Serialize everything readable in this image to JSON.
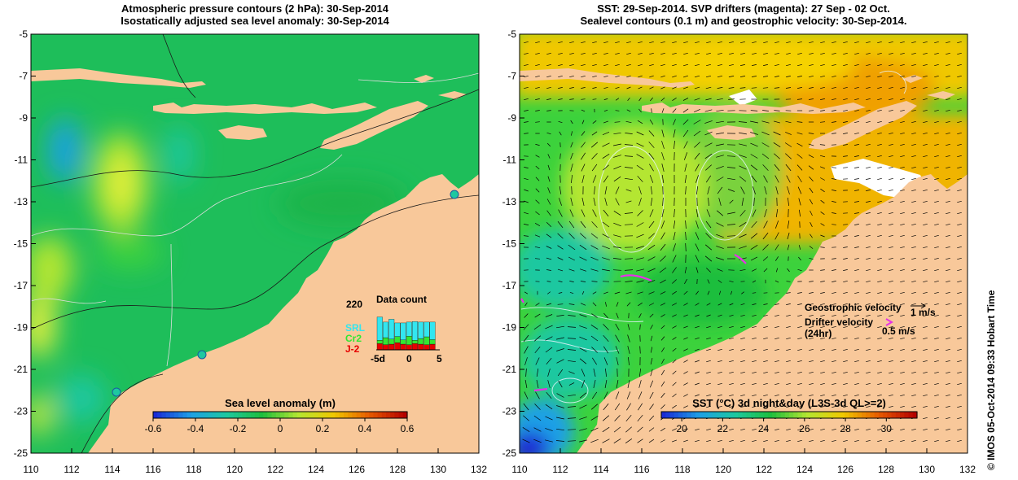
{
  "left_panel": {
    "title_line1": "Atmospheric pressure contours (2 hPa): 30-Sep-2014",
    "title_line2": "Isostatically adjusted sea level anomaly: 30-Sep-2014",
    "colorbar_label": "Sea level anomaly (m)",
    "colorbar_ticks": [
      "-0.6",
      "-0.4",
      "-0.2",
      "0",
      "0.2",
      "0.4",
      "0.6"
    ],
    "colorbar_range": [
      -0.6,
      0.6
    ],
    "colors": [
      "#1a2bd6",
      "#1ea0e6",
      "#1ec8a0",
      "#1ebe3c",
      "#b4e632",
      "#f0c800",
      "#e65a00",
      "#b40000"
    ],
    "inset": {
      "title": "Data count",
      "ymax_label": "220",
      "xticks": [
        "-5d",
        "0",
        "5"
      ],
      "legend": [
        {
          "name": "SRL",
          "color": "#32e6f0"
        },
        {
          "name": "Cr2",
          "color": "#32e632"
        },
        {
          "name": "J-2",
          "color": "#e60000"
        }
      ]
    }
  },
  "right_panel": {
    "title_line1": "SST: 29-Sep-2014. SVP drifters (magenta): 27 Sep - 02 Oct.",
    "title_line2": "Sealevel contours (0.1 m) and geostrophic velocity: 30-Sep-2014.",
    "colorbar_label": "SST (°C) 3d night&day (L3S-3d QL>=2)",
    "colorbar_ticks": [
      "20",
      "22",
      "24",
      "26",
      "28",
      "30"
    ],
    "colorbar_range": [
      19,
      31.5
    ],
    "colors": [
      "#1a2bd6",
      "#1ea0e6",
      "#1ec8a0",
      "#1ebe3c",
      "#b4e632",
      "#f0c800",
      "#e65a00",
      "#b40000"
    ],
    "geostrophic_label": "Geostrophic velocity",
    "geostrophic_scale": "1 m/s",
    "drifter_label_line1": "Drifter velocity",
    "drifter_label_line2": "(24hr)",
    "drifter_scale": "0.5 m/s"
  },
  "axes": {
    "x_ticks": [
      "110",
      "112",
      "114",
      "116",
      "118",
      "120",
      "122",
      "124",
      "126",
      "128",
      "130",
      "132"
    ],
    "y_ticks": [
      "-5",
      "-7",
      "-9",
      "-11",
      "-13",
      "-15",
      "-17",
      "-19",
      "-21",
      "-23",
      "-25"
    ],
    "lon_range": [
      110,
      132
    ],
    "lat_range": [
      -25,
      -5
    ]
  },
  "credit": "© IMOS 05-Oct-2014 09:33 Hobart Time",
  "land_color": "#f8c89a"
}
